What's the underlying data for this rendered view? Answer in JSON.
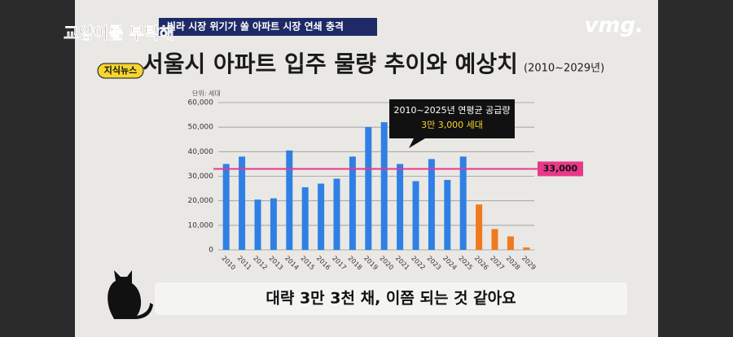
{
  "overlay": {
    "logo": "교양이를 부탁해",
    "logo_tag": "지식뉴스",
    "banner": "빌라 시장 위기가 쏠 아파트 시장 연쇄 충격",
    "brand": "vmg.",
    "caption": "대략 3만 3천 채, 이쯤 되는 것 같아요"
  },
  "chart_data": {
    "type": "bar",
    "title": "서울시 아파트 입주 물량 추이와 예상치",
    "subtitle": "(2010~2029년)",
    "unit_label": "단위: 세대",
    "categories": [
      "2010",
      "2011",
      "2012",
      "2013",
      "2014",
      "2015",
      "2016",
      "2017",
      "2018",
      "2019",
      "2020",
      "2021",
      "2022",
      "2023",
      "2024",
      "2025",
      "2026",
      "2027",
      "2028",
      "2029"
    ],
    "values": [
      35000,
      38000,
      20500,
      21000,
      40500,
      25500,
      27000,
      29000,
      38000,
      50000,
      52000,
      35000,
      28000,
      37000,
      28500,
      38000,
      18500,
      8500,
      5500,
      1000
    ],
    "colors": [
      "#2f80e4",
      "#2f80e4",
      "#2f80e4",
      "#2f80e4",
      "#2f80e4",
      "#2f80e4",
      "#2f80e4",
      "#2f80e4",
      "#2f80e4",
      "#2f80e4",
      "#2f80e4",
      "#2f80e4",
      "#2f80e4",
      "#2f80e4",
      "#2f80e4",
      "#2f80e4",
      "#f07a1e",
      "#f07a1e",
      "#f07a1e",
      "#f07a1e"
    ],
    "ylim": [
      0,
      60000
    ],
    "yticks": [
      0,
      {
        "value": 10000,
        "label": "10,000"
      },
      {
        "value": 20000,
        "label": "20,000"
      },
      {
        "value": 30000,
        "label": "30,000"
      },
      {
        "value": 40000,
        "label": "40,000"
      },
      {
        "value": 50000,
        "label": "50,000"
      },
      {
        "value": 60000,
        "label": "60,000"
      }
    ],
    "grid": true,
    "reference_line": {
      "value": 33000,
      "label": "33,000",
      "color": "#e8388a"
    },
    "annotation": [
      "2010~2025년 연평균 공급량",
      "3만 3,000 세대"
    ]
  }
}
